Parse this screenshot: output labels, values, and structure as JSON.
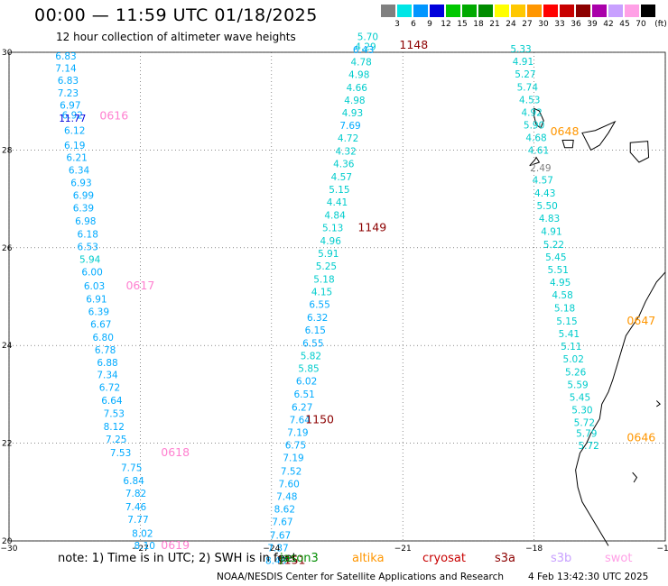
{
  "header": {
    "title": "00:00 — 11:59 UTC 01/18/2025",
    "subtitle": "12 hour collection of altimeter wave heights"
  },
  "legend": {
    "unit": "(ft)",
    "items": [
      {
        "label": "3",
        "color": "#808080"
      },
      {
        "label": "6",
        "color": "#00e6e6"
      },
      {
        "label": "9",
        "color": "#0096ff"
      },
      {
        "label": "12",
        "color": "#0000dc"
      },
      {
        "label": "15",
        "color": "#00c800"
      },
      {
        "label": "18",
        "color": "#00aa00"
      },
      {
        "label": "21",
        "color": "#008c00"
      },
      {
        "label": "24",
        "color": "#ffff00"
      },
      {
        "label": "27",
        "color": "#ffc800"
      },
      {
        "label": "30",
        "color": "#ff9600"
      },
      {
        "label": "33",
        "color": "#ff0000"
      },
      {
        "label": "36",
        "color": "#c80000"
      },
      {
        "label": "39",
        "color": "#8c0000"
      },
      {
        "label": "42",
        "color": "#aa00aa"
      },
      {
        "label": "45",
        "color": "#c8a0ff"
      },
      {
        "label": "70",
        "color": "#ffa0e6"
      },
      {
        "label": "",
        "color": "#000000"
      }
    ]
  },
  "map": {
    "lon_ticks": [
      -30,
      -27,
      -24,
      -21,
      -18,
      -15
    ],
    "lon_labels": [
      "−30",
      "−27",
      "−24",
      "−21",
      "−18",
      "−15"
    ],
    "lat_ticks": [
      30,
      28,
      26,
      24,
      22,
      20
    ],
    "lat_labels": [
      "30",
      "28",
      "26",
      "24",
      "22",
      "20"
    ],
    "lon_range": [
      -30,
      -15
    ],
    "lat_range": [
      20,
      30
    ],
    "grid": "dotted",
    "coastline_color": "#000000"
  },
  "tracks": [
    {
      "time_label": "0616",
      "label_lon": -27.6,
      "label_lat": 28.63,
      "label_color": "#ff80d0",
      "points": [
        {
          "v": "6.83",
          "lon": -28.7,
          "lat": 29.85,
          "c": "#00aaff"
        },
        {
          "v": "7.14",
          "lon": -28.7,
          "lat": 29.6,
          "c": "#00aaff"
        },
        {
          "v": "6.83",
          "lon": -28.65,
          "lat": 29.35,
          "c": "#00aaff"
        },
        {
          "v": "7.23",
          "lon": -28.65,
          "lat": 29.1,
          "c": "#00aaff"
        },
        {
          "v": "6.97",
          "lon": -28.6,
          "lat": 28.85,
          "c": "#00aaff"
        },
        {
          "v": "6.92",
          "lon": -28.55,
          "lat": 28.64,
          "c": "#00aaff"
        },
        {
          "v": "11.77",
          "lon": -28.55,
          "lat": 28.58,
          "c": "#0000dc"
        },
        {
          "v": "6.12",
          "lon": -28.5,
          "lat": 28.33,
          "c": "#00aaff"
        },
        {
          "v": "6.19",
          "lon": -28.5,
          "lat": 28.03,
          "c": "#00aaff"
        },
        {
          "v": "6.21",
          "lon": -28.45,
          "lat": 27.78,
          "c": "#00aaff"
        },
        {
          "v": "6.34",
          "lon": -28.4,
          "lat": 27.52,
          "c": "#00aaff"
        },
        {
          "v": "6.93",
          "lon": -28.35,
          "lat": 27.26,
          "c": "#00aaff"
        },
        {
          "v": "6.99",
          "lon": -28.3,
          "lat": 27.0,
          "c": "#00aaff"
        },
        {
          "v": "6.39",
          "lon": -28.3,
          "lat": 26.74,
          "c": "#00aaff"
        },
        {
          "v": "6.98",
          "lon": -28.25,
          "lat": 26.48,
          "c": "#00aaff"
        },
        {
          "v": "6.18",
          "lon": -28.2,
          "lat": 26.21,
          "c": "#00aaff"
        },
        {
          "v": "6.53",
          "lon": -28.2,
          "lat": 25.95,
          "c": "#00aaff"
        },
        {
          "v": "5.94",
          "lon": -28.15,
          "lat": 25.69,
          "c": "#00cccc"
        },
        {
          "v": "6.00",
          "lon": -28.1,
          "lat": 25.43,
          "c": "#00aaff"
        },
        {
          "v": "6.03",
          "lon": -28.05,
          "lat": 25.15,
          "c": "#00aaff"
        },
        {
          "v": "6.91",
          "lon": -28.0,
          "lat": 24.88,
          "c": "#00aaff"
        },
        {
          "v": "6.39",
          "lon": -27.95,
          "lat": 24.62,
          "c": "#00aaff"
        },
        {
          "v": "6.67",
          "lon": -27.9,
          "lat": 24.36,
          "c": "#00aaff"
        },
        {
          "v": "6.80",
          "lon": -27.85,
          "lat": 24.1,
          "c": "#00aaff"
        },
        {
          "v": "6.78",
          "lon": -27.8,
          "lat": 23.84,
          "c": "#00aaff"
        },
        {
          "v": "6.88",
          "lon": -27.75,
          "lat": 23.58,
          "c": "#00aaff"
        },
        {
          "v": "7.34",
          "lon": -27.75,
          "lat": 23.33,
          "c": "#00aaff"
        },
        {
          "v": "6.72",
          "lon": -27.7,
          "lat": 23.07,
          "c": "#00aaff"
        },
        {
          "v": "6.64",
          "lon": -27.65,
          "lat": 22.8,
          "c": "#00aaff"
        },
        {
          "v": "7.53",
          "lon": -27.6,
          "lat": 22.54,
          "c": "#00aaff"
        },
        {
          "v": "8.12",
          "lon": -27.6,
          "lat": 22.27,
          "c": "#00aaff"
        },
        {
          "v": "7.25",
          "lon": -27.55,
          "lat": 22.01,
          "c": "#00aaff"
        },
        {
          "v": "7.53",
          "lon": -27.45,
          "lat": 21.73,
          "c": "#00aaff"
        }
      ]
    },
    {
      "time_label": "0617",
      "label_lon": -27.0,
      "label_lat": 25.15,
      "label_color": "#ff80d0",
      "points": []
    },
    {
      "time_label": "0618",
      "label_lon": -26.2,
      "label_lat": 21.73,
      "label_color": "#ff80d0",
      "points": [
        {
          "v": "7.75",
          "lon": -27.2,
          "lat": 21.43,
          "c": "#00aaff"
        },
        {
          "v": "6.84",
          "lon": -27.15,
          "lat": 21.16,
          "c": "#00aaff"
        },
        {
          "v": "7.82",
          "lon": -27.1,
          "lat": 20.9,
          "c": "#00aaff"
        },
        {
          "v": "7.46",
          "lon": -27.1,
          "lat": 20.63,
          "c": "#00aaff"
        },
        {
          "v": "7.77",
          "lon": -27.05,
          "lat": 20.37,
          "c": "#00aaff"
        },
        {
          "v": "8.02",
          "lon": -26.95,
          "lat": 20.08,
          "c": "#00aaff"
        },
        {
          "v": "8.10",
          "lon": -26.9,
          "lat": 19.83,
          "c": "#00aaff"
        }
      ]
    },
    {
      "time_label": "0619",
      "label_lon": -26.2,
      "label_lat": 19.83,
      "label_color": "#ff80d0",
      "points": []
    },
    {
      "time_label": "1148",
      "label_lon": -20.75,
      "label_lat": 30.07,
      "label_color": "#8c0000",
      "points": [
        {
          "v": "5.70",
          "lon": -21.8,
          "lat": 30.25,
          "c": "#00cccc"
        },
        {
          "v": "4.29",
          "lon": -21.85,
          "lat": 30.05,
          "c": "#00cccc"
        },
        {
          "v": "6.43",
          "lon": -21.9,
          "lat": 29.98,
          "c": "#00aaff"
        },
        {
          "v": "4.78",
          "lon": -21.95,
          "lat": 29.73,
          "c": "#00cccc"
        },
        {
          "v": "4.98",
          "lon": -22.0,
          "lat": 29.47,
          "c": "#00cccc"
        },
        {
          "v": "4.66",
          "lon": -22.05,
          "lat": 29.21,
          "c": "#00cccc"
        },
        {
          "v": "4.98",
          "lon": -22.1,
          "lat": 28.95,
          "c": "#00cccc"
        },
        {
          "v": "4.93",
          "lon": -22.15,
          "lat": 28.69,
          "c": "#00cccc"
        },
        {
          "v": "7.69",
          "lon": -22.2,
          "lat": 28.43,
          "c": "#00aaff"
        },
        {
          "v": "4.72",
          "lon": -22.25,
          "lat": 28.17,
          "c": "#00cccc"
        },
        {
          "v": "4.32",
          "lon": -22.3,
          "lat": 27.91,
          "c": "#00cccc"
        },
        {
          "v": "4.36",
          "lon": -22.35,
          "lat": 27.65,
          "c": "#00cccc"
        },
        {
          "v": "4.57",
          "lon": -22.4,
          "lat": 27.38,
          "c": "#00cccc"
        },
        {
          "v": "5.15",
          "lon": -22.45,
          "lat": 27.12,
          "c": "#00cccc"
        },
        {
          "v": "4.41",
          "lon": -22.5,
          "lat": 26.86,
          "c": "#00cccc"
        },
        {
          "v": "4.84",
          "lon": -22.55,
          "lat": 26.6,
          "c": "#00cccc"
        },
        {
          "v": "5.13",
          "lon": -22.6,
          "lat": 26.34,
          "c": "#00cccc"
        },
        {
          "v": "4.96",
          "lon": -22.65,
          "lat": 26.07,
          "c": "#00cccc"
        },
        {
          "v": "5.91",
          "lon": -22.7,
          "lat": 25.81,
          "c": "#00cccc"
        },
        {
          "v": "5.25",
          "lon": -22.75,
          "lat": 25.55,
          "c": "#00cccc"
        },
        {
          "v": "5.18",
          "lon": -22.8,
          "lat": 25.29,
          "c": "#00cccc"
        },
        {
          "v": "4.15",
          "lon": -22.85,
          "lat": 25.03,
          "c": "#00cccc"
        },
        {
          "v": "6.55",
          "lon": -22.9,
          "lat": 24.77,
          "c": "#00aaff"
        },
        {
          "v": "6.32",
          "lon": -22.95,
          "lat": 24.5,
          "c": "#00aaff"
        }
      ]
    },
    {
      "time_label": "1149",
      "label_lon": -21.7,
      "label_lat": 26.34,
      "label_color": "#8c0000",
      "points": [
        {
          "v": "6.15",
          "lon": -23.0,
          "lat": 24.24,
          "c": "#00aaff"
        },
        {
          "v": "6.55",
          "lon": -23.05,
          "lat": 23.98,
          "c": "#00aaff"
        },
        {
          "v": "5.82",
          "lon": -23.1,
          "lat": 23.72,
          "c": "#00cccc"
        },
        {
          "v": "5.85",
          "lon": -23.15,
          "lat": 23.46,
          "c": "#00cccc"
        },
        {
          "v": "6.02",
          "lon": -23.2,
          "lat": 23.2,
          "c": "#00aaff"
        },
        {
          "v": "6.51",
          "lon": -23.25,
          "lat": 22.93,
          "c": "#00aaff"
        },
        {
          "v": "6.27",
          "lon": -23.3,
          "lat": 22.67,
          "c": "#00aaff"
        },
        {
          "v": "7.64",
          "lon": -23.35,
          "lat": 22.41,
          "c": "#00aaff"
        },
        {
          "v": "7.19",
          "lon": -23.4,
          "lat": 22.15,
          "c": "#00aaff"
        },
        {
          "v": "6.75",
          "lon": -23.45,
          "lat": 21.89,
          "c": "#00aaff"
        },
        {
          "v": "7.19",
          "lon": -23.5,
          "lat": 21.63,
          "c": "#00aaff"
        },
        {
          "v": "7.52",
          "lon": -23.55,
          "lat": 21.36,
          "c": "#00aaff"
        },
        {
          "v": "7.60",
          "lon": -23.6,
          "lat": 21.1,
          "c": "#00aaff"
        },
        {
          "v": "7.48",
          "lon": -23.65,
          "lat": 20.84,
          "c": "#00aaff"
        },
        {
          "v": "8.62",
          "lon": -23.7,
          "lat": 20.58,
          "c": "#00aaff"
        },
        {
          "v": "7.67",
          "lon": -23.75,
          "lat": 20.32,
          "c": "#00aaff"
        },
        {
          "v": "7.67",
          "lon": -23.8,
          "lat": 20.05,
          "c": "#00aaff"
        },
        {
          "v": "7.37",
          "lon": -23.85,
          "lat": 19.79,
          "c": "#00aaff"
        },
        {
          "v": "8.48",
          "lon": -23.9,
          "lat": 19.53,
          "c": "#00aaff"
        }
      ]
    },
    {
      "time_label": "1150",
      "label_lon": -22.9,
      "label_lat": 22.41,
      "label_color": "#8c0000",
      "points": []
    },
    {
      "time_label": "1151",
      "label_lon": -23.55,
      "label_lat": 19.53,
      "label_color": "#8c0000",
      "points": []
    },
    {
      "time_label": "0646",
      "label_lon": -15.55,
      "label_lat": 22.04,
      "label_color": "#ff9600",
      "points": [
        {
          "v": "5.33",
          "lon": -18.3,
          "lat": 30.0,
          "c": "#00cccc"
        },
        {
          "v": "4.91",
          "lon": -18.25,
          "lat": 29.74,
          "c": "#00cccc"
        },
        {
          "v": "5.27",
          "lon": -18.2,
          "lat": 29.48,
          "c": "#00cccc"
        },
        {
          "v": "5.74",
          "lon": -18.15,
          "lat": 29.22,
          "c": "#00cccc"
        },
        {
          "v": "4.53",
          "lon": -18.1,
          "lat": 28.96,
          "c": "#00cccc"
        },
        {
          "v": "4.92",
          "lon": -18.05,
          "lat": 28.7,
          "c": "#00cccc"
        },
        {
          "v": "5.90",
          "lon": -18.0,
          "lat": 28.44,
          "c": "#00cccc"
        },
        {
          "v": "4.68",
          "lon": -17.95,
          "lat": 28.18,
          "c": "#00cccc"
        },
        {
          "v": "4.61",
          "lon": -17.9,
          "lat": 27.92,
          "c": "#00cccc"
        },
        {
          "v": "2.49",
          "lon": -17.85,
          "lat": 27.56,
          "c": "#808080"
        },
        {
          "v": "4.57",
          "lon": -17.8,
          "lat": 27.32,
          "c": "#00cccc"
        },
        {
          "v": "4.43",
          "lon": -17.75,
          "lat": 27.05,
          "c": "#00cccc"
        },
        {
          "v": "5.50",
          "lon": -17.7,
          "lat": 26.79,
          "c": "#00cccc"
        },
        {
          "v": "4.83",
          "lon": -17.65,
          "lat": 26.53,
          "c": "#00cccc"
        },
        {
          "v": "4.91",
          "lon": -17.6,
          "lat": 26.26,
          "c": "#00cccc"
        },
        {
          "v": "5.22",
          "lon": -17.55,
          "lat": 26.0,
          "c": "#00cccc"
        },
        {
          "v": "5.45",
          "lon": -17.5,
          "lat": 25.74,
          "c": "#00cccc"
        },
        {
          "v": "5.51",
          "lon": -17.45,
          "lat": 25.48,
          "c": "#00cccc"
        },
        {
          "v": "4.95",
          "lon": -17.4,
          "lat": 25.22,
          "c": "#00cccc"
        },
        {
          "v": "4.58",
          "lon": -17.35,
          "lat": 24.96,
          "c": "#00cccc"
        },
        {
          "v": "5.18",
          "lon": -17.3,
          "lat": 24.7,
          "c": "#00cccc"
        },
        {
          "v": "5.15",
          "lon": -17.25,
          "lat": 24.43,
          "c": "#00cccc"
        },
        {
          "v": "5.41",
          "lon": -17.2,
          "lat": 24.17,
          "c": "#00cccc"
        },
        {
          "v": "5.11",
          "lon": -17.15,
          "lat": 23.91,
          "c": "#00cccc"
        },
        {
          "v": "5.02",
          "lon": -17.1,
          "lat": 23.65,
          "c": "#00cccc"
        },
        {
          "v": "5.26",
          "lon": -17.05,
          "lat": 23.39,
          "c": "#00cccc"
        },
        {
          "v": "5.59",
          "lon": -17.0,
          "lat": 23.13,
          "c": "#00cccc"
        },
        {
          "v": "5.45",
          "lon": -16.95,
          "lat": 22.87,
          "c": "#00cccc"
        },
        {
          "v": "5.30",
          "lon": -16.9,
          "lat": 22.61,
          "c": "#00cccc"
        },
        {
          "v": "5.72",
          "lon": -16.85,
          "lat": 22.35,
          "c": "#00cccc"
        },
        {
          "v": "5.79",
          "lon": -16.8,
          "lat": 22.13,
          "c": "#00cccc"
        },
        {
          "v": "5.72",
          "lon": -16.75,
          "lat": 21.88,
          "c": "#00cccc"
        }
      ]
    },
    {
      "time_label": "0647",
      "label_lon": -15.55,
      "label_lat": 24.43,
      "label_color": "#ff9600",
      "points": []
    },
    {
      "time_label": "0648",
      "label_lon": -17.3,
      "label_lat": 28.3,
      "label_color": "#ff9600",
      "points": []
    }
  ],
  "footer": {
    "note": "note: 1) Time is in UTC; 2) SWH is in feet",
    "satellites": [
      {
        "name": "jason3",
        "color": "#008c00"
      },
      {
        "name": "altika",
        "color": "#ff9600"
      },
      {
        "name": "cryosat",
        "color": "#c80000"
      },
      {
        "name": "s3a",
        "color": "#8c0000"
      },
      {
        "name": "s3b",
        "color": "#c8a0ff"
      },
      {
        "name": "swot",
        "color": "#ffa0e6"
      }
    ],
    "credit": "NOAA/NESDIS Center for Satellite Applications and Research",
    "timestamp": "4 Feb 13:42:30 UTC 2025"
  }
}
